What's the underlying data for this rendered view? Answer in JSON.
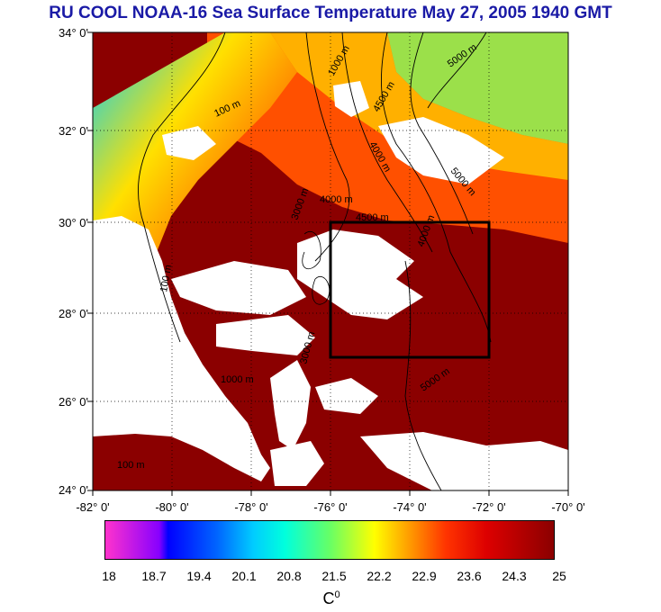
{
  "title": "RU COOL  NOAA-16 Sea Surface Temperature May 27, 2005 1940 GMT",
  "map": {
    "lat_ticks": [
      "34° 0'",
      "32° 0'",
      "30° 0'",
      "28° 0'",
      "26° 0'",
      "24° 0'"
    ],
    "lon_ticks": [
      "-82° 0'",
      "-80° 0'",
      "-78° 0'",
      "-76° 0'",
      "-74° 0'",
      "-72° 0'",
      "-70° 0'"
    ],
    "lat_range": [
      24,
      34
    ],
    "lon_range": [
      -82,
      -70
    ],
    "study_box": {
      "lon": [
        -76,
        -72
      ],
      "lat": [
        27,
        30
      ]
    },
    "contour_labels": [
      "100 m",
      "1000 m",
      "3000 m",
      "4000 m",
      "4500 m",
      "5000 m"
    ],
    "colors": {
      "land": "#ffffff",
      "cloud": "#ffffff",
      "warm_water": "#8b0000",
      "coastal_cool": "#00c0ff",
      "contour": "#000000",
      "box": "#000000"
    }
  },
  "colorbar": {
    "ticks": [
      "18",
      "18.7",
      "19.4",
      "20.1",
      "20.8",
      "21.5",
      "22.2",
      "22.9",
      "23.6",
      "24.3",
      "25"
    ],
    "unit_base": "C",
    "unit_sup": "0"
  }
}
